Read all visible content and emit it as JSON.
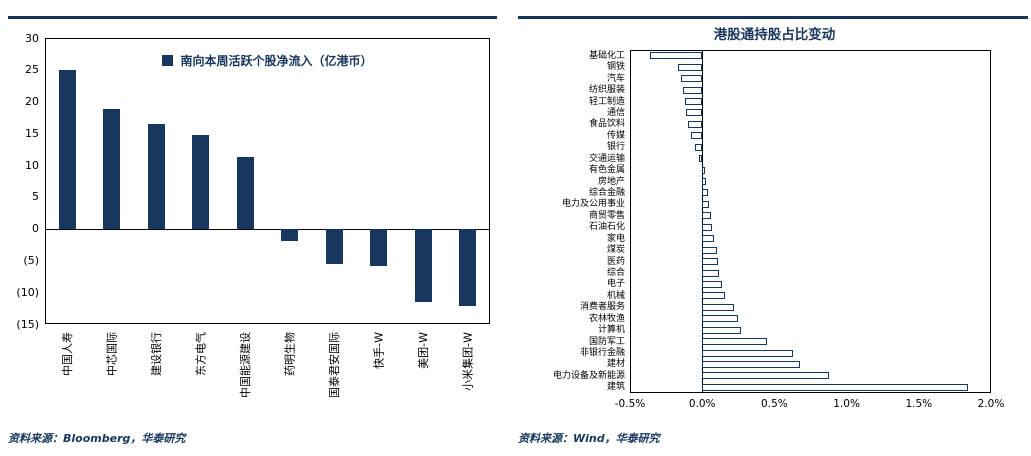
{
  "colors": {
    "navy": "#17375E",
    "axis": "#000000",
    "bar_fill": "#17375E",
    "hbar_fill": "#ffffff"
  },
  "chart_data": [
    {
      "type": "bar",
      "legend": "南向本周活跃个股净流入（亿港币）",
      "categories": [
        "中国人寿",
        "中芯国际",
        "建设银行",
        "东方电气",
        "中国能源建设",
        "药明生物",
        "国泰君安国际",
        "快手-W",
        "美团-W",
        "小米集团-W"
      ],
      "values": [
        25.0,
        18.8,
        16.5,
        14.7,
        11.3,
        -2.0,
        -5.5,
        -5.8,
        -11.5,
        -12.2
      ],
      "ylim": [
        -15,
        30
      ],
      "ytick_values": [
        30,
        25,
        20,
        15,
        10,
        5,
        0,
        -5,
        -10,
        -15
      ],
      "ytick_labels": [
        "30",
        "25",
        "20",
        "15",
        "10",
        "5",
        "0",
        "(5)",
        "(10)",
        "(15)"
      ],
      "grid": false,
      "legend_position": "top-center",
      "source": "资料来源：Bloomberg，华泰研究"
    },
    {
      "type": "bar-horizontal",
      "title": "港股通持股占比变动",
      "categories": [
        "基础化工",
        "钢铁",
        "汽车",
        "纺织服装",
        "轻工制造",
        "通信",
        "食品饮料",
        "传媒",
        "银行",
        "交通运输",
        "有色金属",
        "房地产",
        "综合金融",
        "电力及公用事业",
        "商贸零售",
        "石油石化",
        "家电",
        "煤炭",
        "医药",
        "综合",
        "电子",
        "机械",
        "消费者服务",
        "农林牧渔",
        "计算机",
        "国防军工",
        "非银行金融",
        "建材",
        "电力设备及新能源",
        "建筑"
      ],
      "values": [
        -0.36,
        -0.17,
        -0.15,
        -0.13,
        -0.12,
        -0.11,
        -0.1,
        -0.08,
        -0.05,
        -0.02,
        0.02,
        0.03,
        0.04,
        0.05,
        0.06,
        0.07,
        0.08,
        0.1,
        0.11,
        0.12,
        0.14,
        0.16,
        0.22,
        0.25,
        0.27,
        0.45,
        0.63,
        0.68,
        0.88,
        1.84
      ],
      "unit": "%",
      "xlim": [
        -0.5,
        2.0
      ],
      "xtick_values": [
        -0.5,
        0.0,
        0.5,
        1.0,
        1.5,
        2.0
      ],
      "xtick_labels": [
        "-0.5%",
        "0.0%",
        "0.5%",
        "1.0%",
        "1.5%",
        "2.0%"
      ],
      "grid": false,
      "source": "资料来源：Wind，华泰研究"
    }
  ]
}
